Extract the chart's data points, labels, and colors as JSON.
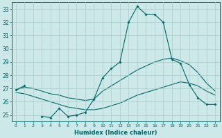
{
  "xlabel": "Humidex (Indice chaleur)",
  "x": [
    0,
    1,
    2,
    3,
    4,
    5,
    6,
    7,
    8,
    9,
    10,
    11,
    12,
    13,
    14,
    15,
    16,
    17,
    18,
    19,
    20,
    21,
    22,
    23
  ],
  "line1": [
    26.9,
    27.2,
    null,
    24.9,
    24.8,
    25.5,
    24.9,
    25.0,
    25.2,
    26.2,
    27.8,
    28.5,
    29.0,
    32.0,
    33.2,
    32.6,
    32.6,
    32.0,
    29.2,
    28.9,
    27.3,
    26.3,
    25.8,
    25.8
  ],
  "line2": [
    26.9,
    27.1,
    27.0,
    26.8,
    26.6,
    26.5,
    26.3,
    26.2,
    26.1,
    26.2,
    26.8,
    27.2,
    27.6,
    28.0,
    28.4,
    28.7,
    29.0,
    29.2,
    29.3,
    29.1,
    28.8,
    28.2,
    27.4,
    26.8
  ],
  "line3": [
    26.7,
    26.6,
    26.4,
    26.2,
    26.0,
    25.8,
    25.6,
    25.5,
    25.4,
    25.4,
    25.5,
    25.7,
    25.9,
    26.2,
    26.5,
    26.7,
    26.9,
    27.1,
    27.3,
    27.5,
    27.4,
    27.2,
    26.8,
    26.5
  ],
  "line_color": "#006666",
  "bg_color": "#cce8e8",
  "grid_color": "#aacccc",
  "ylim": [
    24.5,
    33.5
  ],
  "yticks": [
    25,
    26,
    27,
    28,
    29,
    30,
    31,
    32,
    33
  ],
  "marker": "D",
  "markersize": 2.0
}
